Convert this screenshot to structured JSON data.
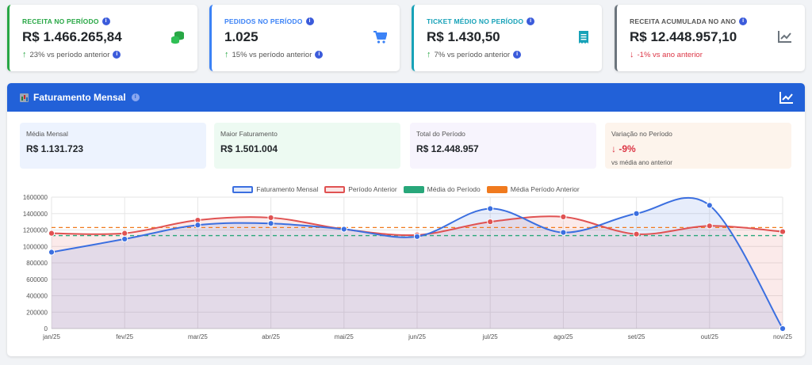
{
  "kpis": [
    {
      "label": "RECEITA NO PERÍODO",
      "value": "R$ 1.466.265,84",
      "delta_arrow": "↑",
      "delta_text": "23% vs período anterior",
      "accent": "#28a745",
      "delta_color": "#28a745",
      "icon": "coins-icon"
    },
    {
      "label": "PEDIDOS NO PERÍODO",
      "value": "1.025",
      "delta_arrow": "↑",
      "delta_text": "15% vs período anterior",
      "accent": "#3b82f6",
      "delta_color": "#28a745",
      "icon": "cart-icon"
    },
    {
      "label": "TICKET MÉDIO NO PERÍODO",
      "value": "R$ 1.430,50",
      "delta_arrow": "↑",
      "delta_text": "7% vs período anterior",
      "accent": "#17a2b8",
      "delta_color": "#28a745",
      "icon": "receipt-icon"
    },
    {
      "label": "RECEITA ACUMULADA NO ANO",
      "value": "R$ 12.448.957,10",
      "delta_arrow": "↓",
      "delta_text": "-1% vs ano anterior",
      "accent": "#6c757d",
      "delta_color": "#dc3545",
      "icon": "chart-line-icon"
    }
  ],
  "panel": {
    "title": "Faturamento Mensal"
  },
  "stats": [
    {
      "label": "Média Mensal",
      "value": "R$ 1.131.723",
      "bg": "#edf3fe"
    },
    {
      "label": "Maior Faturamento",
      "value": "R$ 1.501.004",
      "bg": "#edfaf2"
    },
    {
      "label": "Total do Período",
      "value": "R$ 12.448.957",
      "bg": "#f7f4fd"
    },
    {
      "label": "Variação no Período",
      "value": "↓ -9%",
      "sub": "vs média ano anterior",
      "bg": "#fdf4ec",
      "value_color": "#dc3545"
    }
  ],
  "chart_data": {
    "type": "line",
    "categories": [
      "jan/25",
      "fev/25",
      "mar/25",
      "abr/25",
      "mai/25",
      "jun/25",
      "jul/25",
      "ago/25",
      "set/25",
      "out/25",
      "nov/25"
    ],
    "series": [
      {
        "name": "Faturamento Mensal",
        "color": "#3b6fe0",
        "values": [
          930000,
          1090000,
          1260000,
          1280000,
          1210000,
          1120000,
          1460000,
          1170000,
          1400000,
          1500000,
          0
        ]
      },
      {
        "name": "Período Anterior",
        "color": "#e05252",
        "values": [
          1160000,
          1160000,
          1320000,
          1350000,
          1210000,
          1140000,
          1300000,
          1360000,
          1150000,
          1250000,
          1180000
        ]
      },
      {
        "name": "Média do Período",
        "color": "#28a77a",
        "dashed": true,
        "value": 1131723
      },
      {
        "name": "Média Período Anterior",
        "color": "#f07a1e",
        "dashed": true,
        "value": 1230000
      }
    ],
    "ylim": [
      0,
      1600000
    ],
    "yticks": [
      "0",
      "200000",
      "400000",
      "600000",
      "800000",
      "1000000",
      "1200000",
      "1400000",
      "1600000"
    ],
    "grid": true,
    "legend": "top-center"
  }
}
